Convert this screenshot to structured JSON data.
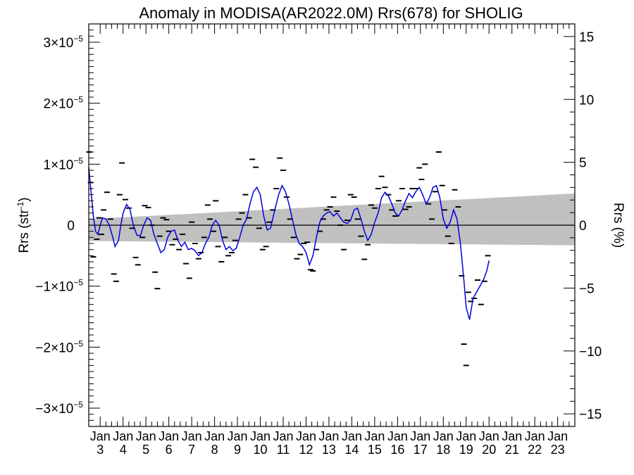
{
  "chart_data": {
    "type": "line",
    "title": "Anomaly in MODISA(AR2022.0M) Rrs(678) for SHOLIG",
    "ylabel_left": "Rrs (str",
    "ylabel_left_sup": "-1",
    "ylabel_left_close": ")",
    "ylabel_right": "Rrs (%)",
    "ylim_left": [
      -3.3e-05,
      3.3e-05
    ],
    "ylim_right": [
      -16,
      16
    ],
    "xlim": [
      2002.5,
      2023.75
    ],
    "x_unit": "year",
    "left_ticks": [
      {
        "value": 3e-05,
        "mant": "3",
        "exp": "−5"
      },
      {
        "value": 2e-05,
        "mant": "2",
        "exp": "−5"
      },
      {
        "value": 1e-05,
        "mant": "1",
        "exp": "−5"
      },
      {
        "value": 0,
        "mant": "0",
        "exp": ""
      },
      {
        "value": -1e-05,
        "mant": "−1",
        "exp": "−5"
      },
      {
        "value": -2e-05,
        "mant": "−2",
        "exp": "−5"
      },
      {
        "value": -3e-05,
        "mant": "−3",
        "exp": "−5"
      }
    ],
    "right_ticks": [
      {
        "value": 15,
        "label": "15"
      },
      {
        "value": 10,
        "label": "10"
      },
      {
        "value": 5,
        "label": "5"
      },
      {
        "value": 0,
        "label": "0"
      },
      {
        "value": -5,
        "label": "−5"
      },
      {
        "value": -10,
        "label": "−10"
      },
      {
        "value": -15,
        "label": "−15"
      }
    ],
    "x_ticks": [
      {
        "value": 2003,
        "month": "Jan",
        "year": "3"
      },
      {
        "value": 2004,
        "month": "Jan",
        "year": "4"
      },
      {
        "value": 2005,
        "month": "Jan",
        "year": "5"
      },
      {
        "value": 2006,
        "month": "Jan",
        "year": "6"
      },
      {
        "value": 2007,
        "month": "Jan",
        "year": "7"
      },
      {
        "value": 2008,
        "month": "Jan",
        "year": "8"
      },
      {
        "value": 2009,
        "month": "Jan",
        "year": "9"
      },
      {
        "value": 2010,
        "month": "Jan",
        "year": "10"
      },
      {
        "value": 2011,
        "month": "Jan",
        "year": "11"
      },
      {
        "value": 2012,
        "month": "Jan",
        "year": "12"
      },
      {
        "value": 2013,
        "month": "Jan",
        "year": "13"
      },
      {
        "value": 2014,
        "month": "Jan",
        "year": "14"
      },
      {
        "value": 2015,
        "month": "Jan",
        "year": "15"
      },
      {
        "value": 2016,
        "month": "Jan",
        "year": "16"
      },
      {
        "value": 2017,
        "month": "Jan",
        "year": "17"
      },
      {
        "value": 2018,
        "month": "Jan",
        "year": "18"
      },
      {
        "value": 2019,
        "month": "Jan",
        "year": "19"
      },
      {
        "value": 2020,
        "month": "Jan",
        "year": "20"
      },
      {
        "value": 2021,
        "month": "Jan",
        "year": "21"
      },
      {
        "value": 2022,
        "month": "Jan",
        "year": "22"
      },
      {
        "value": 2023,
        "month": "Jan",
        "year": "23"
      }
    ],
    "uncertainty_band": {
      "x": [
        2002.5,
        2023.75
      ],
      "upper": [
        1e-06,
        5.2e-06
      ],
      "lower": [
        -2.6e-06,
        -3.3e-06
      ],
      "color": "#c0c0c0"
    },
    "zero_line": 0,
    "series": [
      {
        "type": "line",
        "color": "#0000dd",
        "points": [
          [
            2002.5,
            9.5e-06
          ],
          [
            2002.6,
            5.5e-06
          ],
          [
            2002.7,
            1.5e-06
          ],
          [
            2002.8,
            -1e-06
          ],
          [
            2002.9,
            -1.5e-06
          ],
          [
            2003.0,
            0.0
          ],
          [
            2003.1,
            1.2e-06
          ],
          [
            2003.25,
            1e-06
          ],
          [
            2003.4,
            0.0
          ],
          [
            2003.55,
            -2e-06
          ],
          [
            2003.65,
            -3.5e-06
          ],
          [
            2003.8,
            -2.5e-06
          ],
          [
            2003.9,
            0.0
          ],
          [
            2004.0,
            2e-06
          ],
          [
            2004.15,
            3.4e-06
          ],
          [
            2004.3,
            2.6e-06
          ],
          [
            2004.45,
            0.0
          ],
          [
            2004.6,
            -1.6e-06
          ],
          [
            2004.75,
            -1.8e-06
          ],
          [
            2004.9,
            0.0
          ],
          [
            2005.05,
            1.2e-06
          ],
          [
            2005.2,
            8e-07
          ],
          [
            2005.35,
            -1.5e-06
          ],
          [
            2005.5,
            -3e-06
          ],
          [
            2005.65,
            -4.5e-06
          ],
          [
            2005.8,
            -4e-06
          ],
          [
            2005.95,
            -2e-06
          ],
          [
            2006.1,
            -1e-06
          ],
          [
            2006.25,
            -8e-07
          ],
          [
            2006.4,
            -2.5e-06
          ],
          [
            2006.55,
            -3.5e-06
          ],
          [
            2006.7,
            -2.8e-06
          ],
          [
            2006.85,
            -4e-06
          ],
          [
            2007.0,
            -3.8e-06
          ],
          [
            2007.15,
            -4.2e-06
          ],
          [
            2007.3,
            -5e-06
          ],
          [
            2007.45,
            -4.5e-06
          ],
          [
            2007.6,
            -3e-06
          ],
          [
            2007.75,
            -2e-06
          ],
          [
            2007.9,
            0.0
          ],
          [
            2008.05,
            8e-07
          ],
          [
            2008.2,
            0.0
          ],
          [
            2008.35,
            -2.5e-06
          ],
          [
            2008.5,
            -4e-06
          ],
          [
            2008.65,
            -3.5e-06
          ],
          [
            2008.8,
            -4.2e-06
          ],
          [
            2008.95,
            -3.8e-06
          ],
          [
            2009.1,
            -2e-06
          ],
          [
            2009.25,
            0.0
          ],
          [
            2009.4,
            1e-06
          ],
          [
            2009.55,
            3.5e-06
          ],
          [
            2009.7,
            5.5e-06
          ],
          [
            2009.85,
            6.2e-06
          ],
          [
            2010.0,
            5e-06
          ],
          [
            2010.15,
            1.5e-06
          ],
          [
            2010.3,
            -8e-07
          ],
          [
            2010.45,
            -5e-07
          ],
          [
            2010.6,
            2e-06
          ],
          [
            2010.8,
            5e-06
          ],
          [
            2010.95,
            6.5e-06
          ],
          [
            2011.1,
            5.5e-06
          ],
          [
            2011.25,
            3.5e-06
          ],
          [
            2011.4,
            1e-06
          ],
          [
            2011.55,
            -1.5e-06
          ],
          [
            2011.7,
            -3e-06
          ],
          [
            2011.85,
            -3.5e-06
          ],
          [
            2012.0,
            -4.5e-06
          ],
          [
            2012.15,
            -6.5e-06
          ],
          [
            2012.3,
            -5e-06
          ],
          [
            2012.45,
            -2e-06
          ],
          [
            2012.6,
            5e-07
          ],
          [
            2012.75,
            1.5e-06
          ],
          [
            2012.9,
            2e-06
          ],
          [
            2013.05,
            2.2e-06
          ],
          [
            2013.2,
            1.5e-06
          ],
          [
            2013.35,
            2e-06
          ],
          [
            2013.5,
            1.2e-06
          ],
          [
            2013.65,
            5e-07
          ],
          [
            2013.8,
            3e-07
          ],
          [
            2013.95,
            8e-07
          ],
          [
            2014.1,
            2.5e-06
          ],
          [
            2014.25,
            2.8e-06
          ],
          [
            2014.4,
            1e-06
          ],
          [
            2014.55,
            -1e-06
          ],
          [
            2014.7,
            -2.5e-06
          ],
          [
            2014.85,
            -1.5e-06
          ],
          [
            2015.0,
            5e-07
          ],
          [
            2015.15,
            2e-06
          ],
          [
            2015.3,
            4.5e-06
          ],
          [
            2015.45,
            5.4e-06
          ],
          [
            2015.6,
            4.8e-06
          ],
          [
            2015.75,
            3.5e-06
          ],
          [
            2015.9,
            2e-06
          ],
          [
            2016.05,
            1.5e-06
          ],
          [
            2016.2,
            2.5e-06
          ],
          [
            2016.35,
            4e-06
          ],
          [
            2016.5,
            5.2e-06
          ],
          [
            2016.65,
            4.5e-06
          ],
          [
            2016.8,
            5.5e-06
          ],
          [
            2016.95,
            6.2e-06
          ],
          [
            2017.1,
            5e-06
          ],
          [
            2017.25,
            3.5e-06
          ],
          [
            2017.4,
            4.5e-06
          ],
          [
            2017.55,
            6.2e-06
          ],
          [
            2017.7,
            6.5e-06
          ],
          [
            2017.85,
            4.5e-06
          ],
          [
            2018.0,
            1e-06
          ],
          [
            2018.15,
            -5e-07
          ],
          [
            2018.3,
            5e-07
          ],
          [
            2018.45,
            2.5e-06
          ],
          [
            2018.6,
            1e-06
          ],
          [
            2018.75,
            -3e-06
          ],
          [
            2018.9,
            -9e-06
          ],
          [
            2019.0,
            -1.35e-05
          ],
          [
            2019.15,
            -1.55e-05
          ],
          [
            2019.3,
            -1.2e-05
          ],
          [
            2019.45,
            -1.1e-05
          ],
          [
            2019.6,
            -1e-05
          ],
          [
            2019.75,
            -9e-06
          ],
          [
            2019.9,
            -7.5e-06
          ],
          [
            2020.0,
            -5.8e-06
          ]
        ]
      }
    ],
    "scatter_marks": [
      [
        2002.52,
        1.2e-05
      ],
      [
        2002.58,
        7e-06
      ],
      [
        2002.7,
        -5.2e-06
      ],
      [
        2002.85,
        -2.3e-06
      ],
      [
        2002.95,
        1.2e-06
      ],
      [
        2003.05,
        -1.5e-06
      ],
      [
        2003.15,
        2.5e-06
      ],
      [
        2003.3,
        5.4e-06
      ],
      [
        2003.45,
        1e-06
      ],
      [
        2003.6,
        -8e-06
      ],
      [
        2003.7,
        -9.2e-06
      ],
      [
        2003.85,
        5e-06
      ],
      [
        2003.95,
        1.02e-05
      ],
      [
        2004.1,
        4.2e-06
      ],
      [
        2004.25,
        2.8e-06
      ],
      [
        2004.4,
        -5e-07
      ],
      [
        2004.55,
        -5.3e-06
      ],
      [
        2004.65,
        -6.5e-06
      ],
      [
        2004.85,
        -2e-06
      ],
      [
        2004.95,
        3.2e-06
      ],
      [
        2005.1,
        2.9e-06
      ],
      [
        2005.25,
        0.0
      ],
      [
        2005.4,
        -7.7e-06
      ],
      [
        2005.5,
        -1.04e-05
      ],
      [
        2005.6,
        -1.8e-06
      ],
      [
        2005.75,
        1.2e-06
      ],
      [
        2005.9,
        9e-07
      ],
      [
        2006.0,
        -1e-06
      ],
      [
        2006.15,
        -3.2e-06
      ],
      [
        2006.3,
        -2.3e-06
      ],
      [
        2006.45,
        -4e-06
      ],
      [
        2006.6,
        -1.5e-06
      ],
      [
        2006.75,
        -6.3e-06
      ],
      [
        2006.9,
        -8.7e-06
      ],
      [
        2007.0,
        5e-07
      ],
      [
        2007.15,
        -3e-06
      ],
      [
        2007.3,
        -5.5e-06
      ],
      [
        2007.4,
        -4.5e-06
      ],
      [
        2007.55,
        -2e-06
      ],
      [
        2007.7,
        3.3e-06
      ],
      [
        2007.8,
        1e-06
      ],
      [
        2007.95,
        -1e-06
      ],
      [
        2008.05,
        4e-06
      ],
      [
        2008.15,
        -3.5e-06
      ],
      [
        2008.3,
        -6e-06
      ],
      [
        2008.45,
        -2e-06
      ],
      [
        2008.6,
        -5e-06
      ],
      [
        2008.75,
        -4.5e-06
      ],
      [
        2008.9,
        -2.5e-06
      ],
      [
        2009.05,
        1e-06
      ],
      [
        2009.2,
        2e-06
      ],
      [
        2009.35,
        5e-06
      ],
      [
        2009.5,
        1.2e-06
      ],
      [
        2009.65,
        1.08e-05
      ],
      [
        2009.8,
        9.5e-06
      ],
      [
        2009.95,
        -5e-07
      ],
      [
        2010.1,
        -4e-06
      ],
      [
        2010.25,
        -3.5e-06
      ],
      [
        2010.4,
        5e-07
      ],
      [
        2010.55,
        2.5e-06
      ],
      [
        2010.7,
        6e-06
      ],
      [
        2010.85,
        1.1e-05
      ],
      [
        2011.0,
        9e-06
      ],
      [
        2011.15,
        4.6e-06
      ],
      [
        2011.3,
        1e-06
      ],
      [
        2011.45,
        -2e-06
      ],
      [
        2011.6,
        -5.5e-06
      ],
      [
        2011.75,
        -4.8e-06
      ],
      [
        2011.9,
        -3e-06
      ],
      [
        2012.05,
        -2.8e-06
      ],
      [
        2012.2,
        -7.3e-06
      ],
      [
        2012.3,
        -7.5e-06
      ],
      [
        2012.45,
        -4e-06
      ],
      [
        2012.6,
        -1e-06
      ],
      [
        2012.75,
        1e-06
      ],
      [
        2012.9,
        2.5e-06
      ],
      [
        2013.05,
        3e-06
      ],
      [
        2013.2,
        4.6e-06
      ],
      [
        2013.35,
        2.3e-06
      ],
      [
        2013.5,
        0.0
      ],
      [
        2013.65,
        -4e-06
      ],
      [
        2013.8,
        8e-07
      ],
      [
        2013.95,
        5e-06
      ],
      [
        2014.1,
        4.6e-06
      ],
      [
        2014.25,
        1e-06
      ],
      [
        2014.4,
        -1.8e-06
      ],
      [
        2014.55,
        -5.6e-06
      ],
      [
        2014.7,
        -3.2e-06
      ],
      [
        2014.85,
        3.3e-06
      ],
      [
        2015.0,
        2.8e-06
      ],
      [
        2015.15,
        6e-06
      ],
      [
        2015.3,
        8e-06
      ],
      [
        2015.45,
        6.2e-06
      ],
      [
        2015.6,
        5e-06
      ],
      [
        2015.75,
        2.5e-06
      ],
      [
        2015.9,
        1.5e-06
      ],
      [
        2016.05,
        4e-06
      ],
      [
        2016.2,
        6e-06
      ],
      [
        2016.35,
        2.6e-06
      ],
      [
        2016.5,
        3e-06
      ],
      [
        2016.65,
        6e-06
      ],
      [
        2016.8,
        6e-06
      ],
      [
        2016.95,
        9.4e-06
      ],
      [
        2017.05,
        7.5e-06
      ],
      [
        2017.2,
        1e-05
      ],
      [
        2017.35,
        3.5e-06
      ],
      [
        2017.5,
        1e-06
      ],
      [
        2017.65,
        5.5e-06
      ],
      [
        2017.8,
        1.2e-05
      ],
      [
        2017.95,
        6.5e-06
      ],
      [
        2018.05,
        2.5e-06
      ],
      [
        2018.2,
        -1.8e-06
      ],
      [
        2018.35,
        -3e-06
      ],
      [
        2018.5,
        5.8e-06
      ],
      [
        2018.65,
        3e-06
      ],
      [
        2018.8,
        -8.3e-06
      ],
      [
        2018.9,
        -1.95e-05
      ],
      [
        2019.0,
        -2.3e-05
      ],
      [
        2019.1,
        -1.1e-05
      ],
      [
        2019.2,
        -1.25e-05
      ],
      [
        2019.35,
        -1.2e-05
      ],
      [
        2019.5,
        -9e-06
      ],
      [
        2019.65,
        -1.3e-05
      ],
      [
        2019.8,
        -9.2e-06
      ],
      [
        2019.95,
        -5e-06
      ]
    ]
  }
}
